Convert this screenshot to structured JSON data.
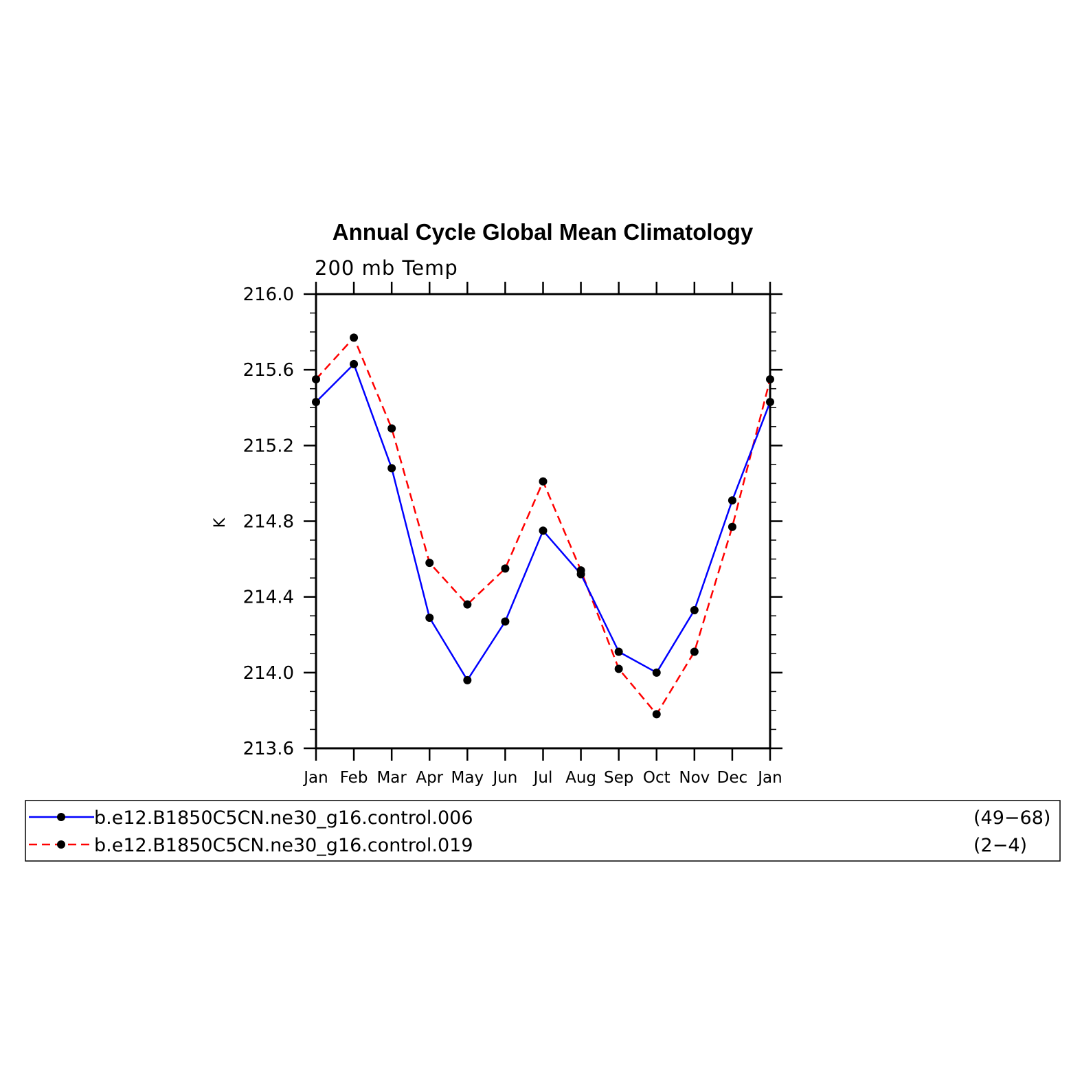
{
  "chart_data": {
    "type": "line",
    "title": "Annual Cycle Global Mean Climatology",
    "subtitle": "200 mb Temp",
    "ylabel": "K",
    "xlabel": "",
    "categories": [
      "Jan",
      "Feb",
      "Mar",
      "Apr",
      "May",
      "Jun",
      "Jul",
      "Aug",
      "Sep",
      "Oct",
      "Nov",
      "Dec",
      "Jan"
    ],
    "ylim": [
      213.6,
      216.0
    ],
    "yticks": [
      "216.0",
      "215.6",
      "215.2",
      "214.8",
      "214.4",
      "214.0",
      "213.6"
    ],
    "grid": false,
    "legend_position": "bottom",
    "series": [
      {
        "name": "b.e12.B1850C5CN.ne30_g16.control.006",
        "years": "(49−68)",
        "color": "#0000ff",
        "dash": "solid",
        "marker": "filled-circle",
        "values": [
          215.43,
          215.63,
          215.08,
          214.29,
          213.96,
          214.27,
          214.75,
          214.52,
          214.11,
          214.0,
          214.33,
          214.91,
          215.43
        ]
      },
      {
        "name": "b.e12.B1850C5CN.ne30_g16.control.019",
        "years": "(2−4)",
        "color": "#ff0000",
        "dash": "dashed",
        "marker": "filled-circle",
        "values": [
          215.55,
          215.77,
          215.29,
          214.58,
          214.36,
          214.55,
          215.01,
          214.54,
          214.02,
          213.78,
          214.11,
          214.77,
          215.55
        ]
      }
    ],
    "marker_color": "#000000"
  }
}
